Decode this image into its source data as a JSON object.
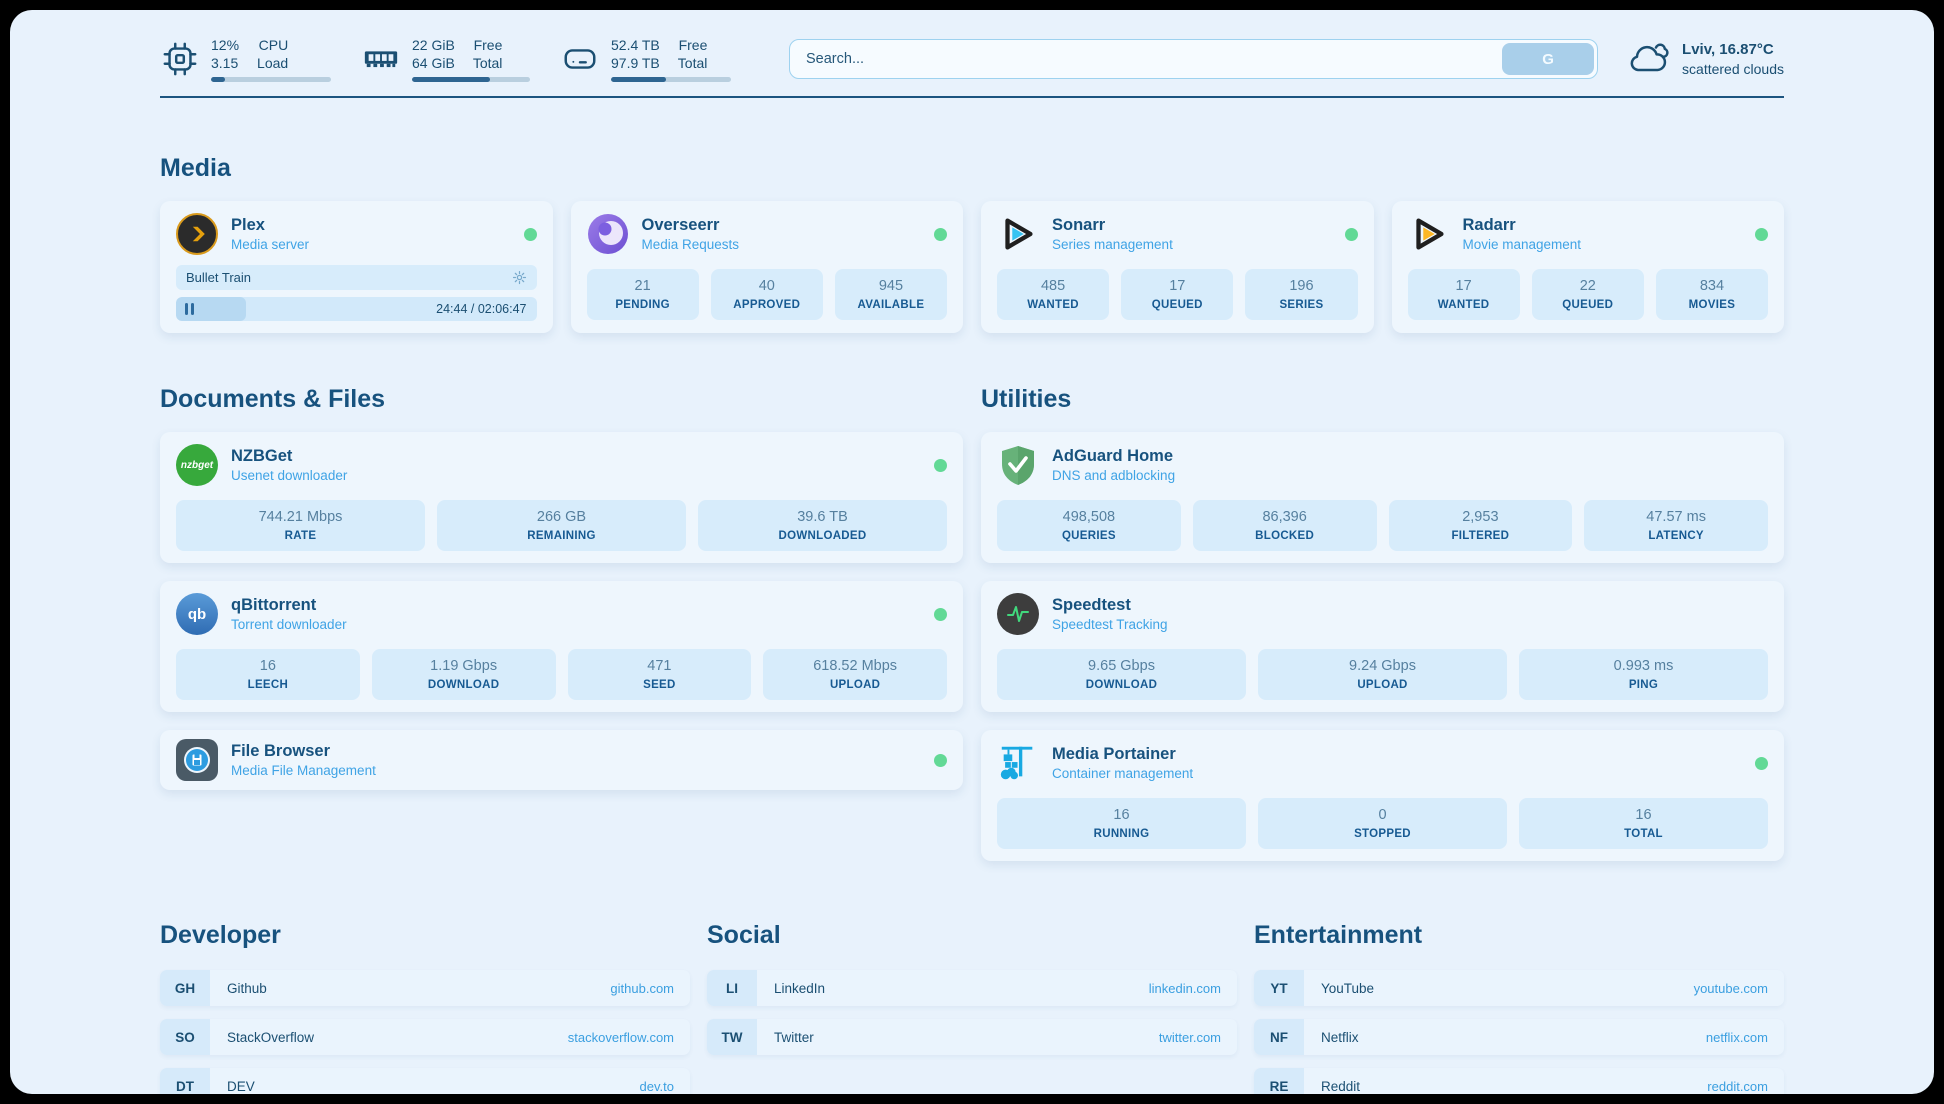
{
  "topbar": {
    "cpu": {
      "icon": "cpu-chip-icon",
      "values": [
        "12%",
        "3.15"
      ],
      "labels": [
        "CPU",
        "Load"
      ],
      "progress_pct": 12
    },
    "memory": {
      "icon": "ram-icon",
      "values": [
        "22 GiB",
        "64 GiB"
      ],
      "labels": [
        "Free",
        "Total"
      ],
      "progress_pct": 66
    },
    "disk": {
      "icon": "hard-drive-icon",
      "values": [
        "52.4 TB",
        "97.9 TB"
      ],
      "labels": [
        "Free",
        "Total"
      ],
      "progress_pct": 46
    },
    "search": {
      "placeholder": "Search...",
      "button_label": "G"
    },
    "weather": {
      "location": "Lviv, 16.87°C",
      "condition": "scattered clouds"
    }
  },
  "sections": {
    "media": {
      "title": "Media"
    },
    "documents": {
      "title": "Documents & Files"
    },
    "utilities": {
      "title": "Utilities"
    },
    "developer": {
      "title": "Developer"
    },
    "social": {
      "title": "Social"
    },
    "entertainment": {
      "title": "Entertainment"
    }
  },
  "services": {
    "plex": {
      "name": "Plex",
      "subtitle": "Media server",
      "online": true,
      "now_playing": {
        "title": "Bullet Train",
        "time_display": "24:44 / 02:06:47",
        "progress_pct": 19.5
      }
    },
    "overseerr": {
      "name": "Overseerr",
      "subtitle": "Media Requests",
      "online": true,
      "stats": [
        {
          "value": "21",
          "label": "PENDING"
        },
        {
          "value": "40",
          "label": "APPROVED"
        },
        {
          "value": "945",
          "label": "AVAILABLE"
        }
      ]
    },
    "sonarr": {
      "name": "Sonarr",
      "subtitle": "Series management",
      "online": true,
      "stats": [
        {
          "value": "485",
          "label": "WANTED"
        },
        {
          "value": "17",
          "label": "QUEUED"
        },
        {
          "value": "196",
          "label": "SERIES"
        }
      ]
    },
    "radarr": {
      "name": "Radarr",
      "subtitle": "Movie management",
      "online": true,
      "stats": [
        {
          "value": "17",
          "label": "WANTED"
        },
        {
          "value": "22",
          "label": "QUEUED"
        },
        {
          "value": "834",
          "label": "MOVIES"
        }
      ]
    },
    "nzbget": {
      "name": "NZBGet",
      "subtitle": "Usenet downloader",
      "online": true,
      "stats": [
        {
          "value": "744.21 Mbps",
          "label": "RATE"
        },
        {
          "value": "266 GB",
          "label": "REMAINING"
        },
        {
          "value": "39.6 TB",
          "label": "DOWNLOADED"
        }
      ]
    },
    "qbittorrent": {
      "name": "qBittorrent",
      "subtitle": "Torrent downloader",
      "online": true,
      "stats": [
        {
          "value": "16",
          "label": "LEECH"
        },
        {
          "value": "1.19 Gbps",
          "label": "DOWNLOAD"
        },
        {
          "value": "471",
          "label": "SEED"
        },
        {
          "value": "618.52 Mbps",
          "label": "UPLOAD"
        }
      ]
    },
    "filebrowser": {
      "name": "File Browser",
      "subtitle": "Media File Management",
      "online": true
    },
    "adguard": {
      "name": "AdGuard Home",
      "subtitle": "DNS and adblocking",
      "online": false,
      "stats": [
        {
          "value": "498,508",
          "label": "QUERIES"
        },
        {
          "value": "86,396",
          "label": "BLOCKED"
        },
        {
          "value": "2,953",
          "label": "FILTERED"
        },
        {
          "value": "47.57 ms",
          "label": "LATENCY"
        }
      ]
    },
    "speedtest": {
      "name": "Speedtest",
      "subtitle": "Speedtest Tracking",
      "online": false,
      "stats": [
        {
          "value": "9.65 Gbps",
          "label": "DOWNLOAD"
        },
        {
          "value": "9.24 Gbps",
          "label": "UPLOAD"
        },
        {
          "value": "0.993 ms",
          "label": "PING"
        }
      ]
    },
    "portainer": {
      "name": "Media Portainer",
      "subtitle": "Container management",
      "online": true,
      "stats": [
        {
          "value": "16",
          "label": "RUNNING"
        },
        {
          "value": "0",
          "label": "STOPPED"
        },
        {
          "value": "16",
          "label": "TOTAL"
        }
      ]
    }
  },
  "bookmarks": {
    "developer": [
      {
        "abbr": "GH",
        "name": "Github",
        "url": "github.com"
      },
      {
        "abbr": "SO",
        "name": "StackOverflow",
        "url": "stackoverflow.com"
      },
      {
        "abbr": "DT",
        "name": "DEV",
        "url": "dev.to"
      }
    ],
    "social": [
      {
        "abbr": "LI",
        "name": "LinkedIn",
        "url": "linkedin.com"
      },
      {
        "abbr": "TW",
        "name": "Twitter",
        "url": "twitter.com"
      }
    ],
    "entertainment": [
      {
        "abbr": "YT",
        "name": "YouTube",
        "url": "youtube.com"
      },
      {
        "abbr": "NF",
        "name": "Netflix",
        "url": "netflix.com"
      },
      {
        "abbr": "RE",
        "name": "Reddit",
        "url": "reddit.com"
      }
    ]
  },
  "colors": {
    "status_online": "#62d996",
    "accent_dark": "#1b4f72",
    "accent_light": "#3fa3e5",
    "stat_tile": "#d7ecfb"
  }
}
